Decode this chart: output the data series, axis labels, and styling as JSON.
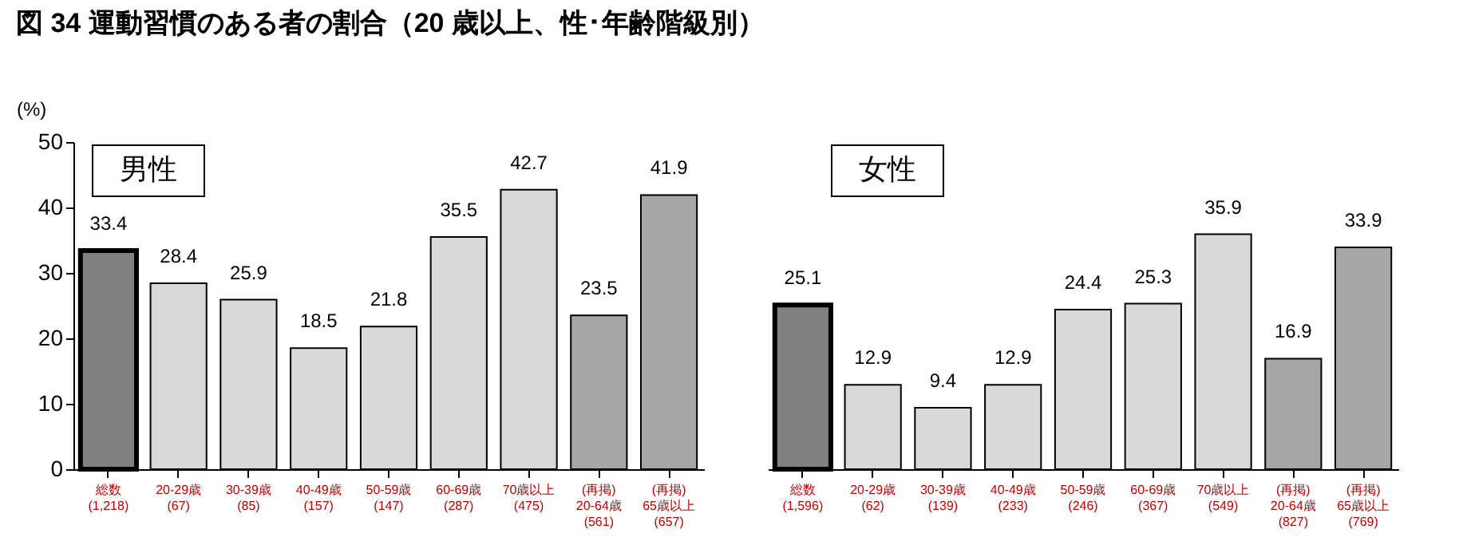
{
  "chart_data": [
    {
      "type": "bar",
      "title": "図 34  運動習慣のある者の割合（20 歳以上、性･年齢階級別）",
      "ylabel": "(%)",
      "annotations": [
        "男性"
      ],
      "categories": [
        "総数\n(1,218)",
        "20-29歳\n(67)",
        "30-39歳\n(85)",
        "40-49歳\n(157)",
        "50-59歳\n(147)",
        "60-69歳\n(287)",
        "70歳以上\n(475)",
        "(再掲)\n20-64歳\n(561)",
        "(再掲)\n65歳以上\n(657)"
      ],
      "values": [
        33.4,
        28.4,
        25.9,
        18.5,
        21.8,
        35.5,
        42.7,
        23.5,
        41.9
      ],
      "colors": [
        "#808080",
        "#d9d9d9",
        "#d9d9d9",
        "#d9d9d9",
        "#d9d9d9",
        "#d9d9d9",
        "#d9d9d9",
        "#a6a6a6",
        "#a6a6a6"
      ],
      "ylim": [
        0,
        50
      ],
      "yticks": [
        0,
        10,
        20,
        30,
        40,
        50
      ],
      "data_labels": true,
      "grid": false
    },
    {
      "type": "bar",
      "annotations": [
        "女性"
      ],
      "categories": [
        "総数\n(1,596)",
        "20-29歳\n(62)",
        "30-39歳\n(139)",
        "40-49歳\n(233)",
        "50-59歳\n(246)",
        "60-69歳\n(367)",
        "70歳以上\n(549)",
        "(再掲)\n20-64歳\n(827)",
        "(再掲)\n65歳以上\n(769)"
      ],
      "values": [
        25.1,
        12.9,
        9.4,
        12.9,
        24.4,
        25.3,
        35.9,
        16.9,
        33.9
      ],
      "colors": [
        "#808080",
        "#d9d9d9",
        "#d9d9d9",
        "#d9d9d9",
        "#d9d9d9",
        "#d9d9d9",
        "#d9d9d9",
        "#a6a6a6",
        "#a6a6a6"
      ],
      "ylim": [
        0,
        50
      ],
      "yticks": [
        0,
        10,
        20,
        30,
        40,
        50
      ],
      "data_labels": true,
      "grid": false,
      "tick_labels": "x"
    }
  ]
}
